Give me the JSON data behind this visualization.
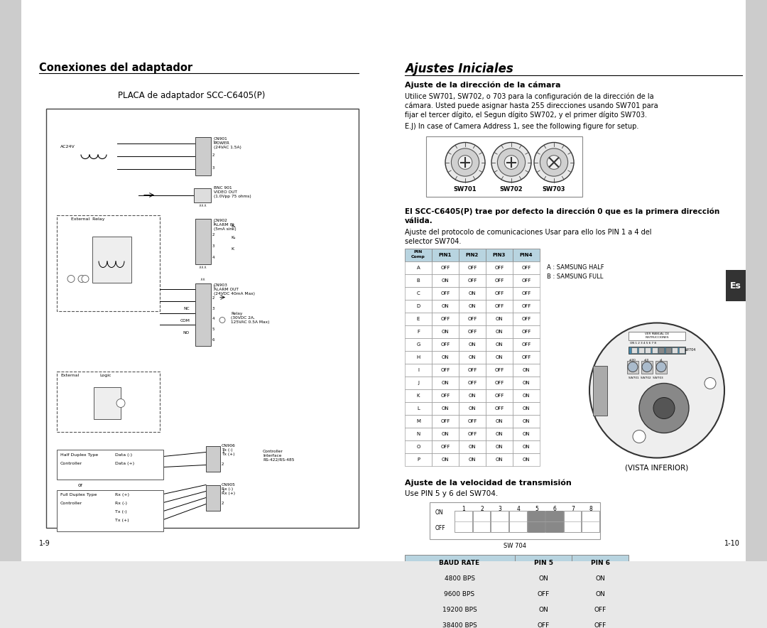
{
  "page_bg": "#e8e8e8",
  "white": "#ffffff",
  "title_left": "Conexiones del adaptador",
  "title_right": "Ajustes Iniciales",
  "subtitle_diagram": "PLACA de adaptador SCC-C6405(P)",
  "section_heading1": "Ajuste de la dirección de la cámara",
  "section_text1a": "Utilice SW701, SW702, o 703 para la configuración de la dirección de la",
  "section_text1b": "cámara. Usted puede asignar hasta 255 direcciones usando SW701 para",
  "section_text1c": "fijar el tercer dígito, el Segun dígito SW702, y el primer dígito SW703.",
  "section_text1d": "E.J) In case of Camera Address 1, see the following figure for setup.",
  "section_heading2a": "El SCC-C6405(P) trae por defecto la dirección 0 que es la primera dirección",
  "section_heading2b": "válida.",
  "section_text2a": "Ajuste del protocolo de comunicaciones Usar para ello los PIN 1 a 4 del",
  "section_text2b": "selector SW704.",
  "pin_label_A": "A : SAMSUNG HALF",
  "pin_label_B": "B : SAMSUNG FULL",
  "section_heading3": "Ajuste de la velocidad de transmisión",
  "section_text3": "Use PIN 5 y 6 del SW704.",
  "sw_label": "SW 704",
  "vista_label": "(VISTA INFERIOR)",
  "page_num_left": "1-9",
  "page_num_right": "1-10",
  "pin_table_header": [
    "PIN\nComp",
    "PIN1",
    "PIN2",
    "PIN3",
    "PIN4"
  ],
  "pin_table_data": [
    [
      "A",
      "OFF",
      "OFF",
      "OFF",
      "OFF"
    ],
    [
      "B",
      "ON",
      "OFF",
      "OFF",
      "OFF"
    ],
    [
      "C",
      "OFF",
      "ON",
      "OFF",
      "OFF"
    ],
    [
      "D",
      "ON",
      "ON",
      "OFF",
      "OFF"
    ],
    [
      "E",
      "OFF",
      "OFF",
      "ON",
      "OFF"
    ],
    [
      "F",
      "ON",
      "OFF",
      "ON",
      "OFF"
    ],
    [
      "G",
      "OFF",
      "ON",
      "ON",
      "OFF"
    ],
    [
      "H",
      "ON",
      "ON",
      "ON",
      "OFF"
    ],
    [
      "I",
      "OFF",
      "OFF",
      "OFF",
      "ON"
    ],
    [
      "J",
      "ON",
      "OFF",
      "OFF",
      "ON"
    ],
    [
      "K",
      "OFF",
      "ON",
      "OFF",
      "ON"
    ],
    [
      "L",
      "ON",
      "ON",
      "OFF",
      "ON"
    ],
    [
      "M",
      "OFF",
      "OFF",
      "ON",
      "ON"
    ],
    [
      "N",
      "ON",
      "OFF",
      "ON",
      "ON"
    ],
    [
      "O",
      "OFF",
      "ON",
      "ON",
      "ON"
    ],
    [
      "P",
      "ON",
      "ON",
      "ON",
      "ON"
    ]
  ],
  "baud_table_header": [
    "BAUD RATE",
    "PIN 5",
    "PIN 6"
  ],
  "baud_table_data": [
    [
      "4800 BPS",
      "ON",
      "ON"
    ],
    [
      "9600 BPS",
      "OFF",
      "ON"
    ],
    [
      "19200 BPS",
      "ON",
      "OFF"
    ],
    [
      "38400 BPS",
      "OFF",
      "OFF"
    ]
  ],
  "highlighted_pins": [
    5,
    6
  ],
  "highlight_color": "#888888",
  "table_header_bg": "#b8d4e0",
  "sidebar_color": "#cccccc",
  "es_tab_bg": "#333333",
  "es_tab_fg": "#ffffff"
}
